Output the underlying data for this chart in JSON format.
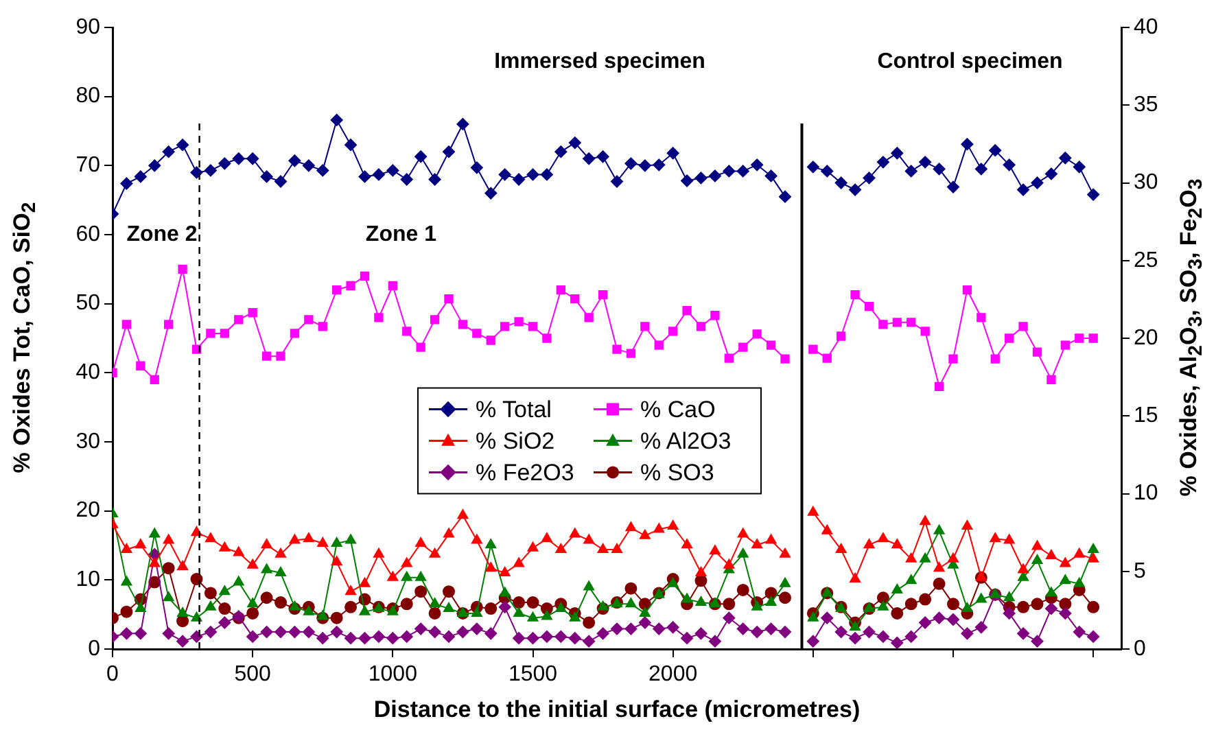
{
  "chart_data": {
    "type": "line",
    "xlabel": "Distance to the initial surface (micrometres)",
    "ylabel": "% Oxides Tot, CaO, SiO$_{2}$",
    "y2label": "% Oxides, Al$_{2}$O$_{3}$, SO$_{3}$, Fe$_{2}$O$_{3}$",
    "x": [
      0,
      50,
      100,
      150,
      200,
      250,
      300,
      350,
      400,
      450,
      500,
      550,
      600,
      650,
      700,
      750,
      800,
      850,
      900,
      950,
      1000,
      1050,
      1100,
      1150,
      1200,
      1250,
      1300,
      1350,
      1400,
      1450,
      1500,
      1550,
      1600,
      1650,
      1700,
      1750,
      1800,
      1850,
      1900,
      1950,
      2000,
      2050,
      2100,
      2150,
      2200,
      2250,
      2300,
      2350,
      2400,
      2450,
      2500,
      2550,
      2600,
      2650,
      2700,
      2750,
      2800,
      2850,
      2900,
      2950,
      3000,
      3050,
      3100,
      3150,
      3200,
      3250,
      3300,
      3350,
      3400,
      3450,
      3500
    ],
    "series": [
      {
        "name": "% Total",
        "color": "#000080",
        "marker": "diamond",
        "values": [
          63,
          67.4,
          68.4,
          70,
          72,
          73,
          69,
          69.3,
          70.3,
          71,
          71,
          68.4,
          67.7,
          70.7,
          70,
          69.3,
          76.6,
          73,
          68.4,
          68.7,
          69.3,
          68,
          71.3,
          68,
          72,
          76,
          69.7,
          66,
          68.7,
          68,
          68.7,
          68.7,
          72,
          73.3,
          71,
          71.3,
          67.7,
          70.3,
          70,
          70.1,
          71.8,
          67.8,
          68.2,
          68.5,
          69.2,
          69.2,
          70.1,
          68.5,
          65.5,
          null,
          69.8,
          69.2,
          67.5,
          66.5,
          68.2,
          70.5,
          71.8,
          69.2,
          70.5,
          69.5,
          66.9,
          73.1,
          69.5,
          72.2,
          70.1,
          66.5,
          67.5,
          68.8,
          71.1,
          69.8,
          65.8
        ]
      },
      {
        "name": "% CaO",
        "color": "#ff00ff",
        "marker": "square",
        "values": [
          40,
          47,
          41,
          39,
          47,
          55,
          43.4,
          45.7,
          45.7,
          47.7,
          48.7,
          42.4,
          42.4,
          45.7,
          47.7,
          46.7,
          52,
          52.6,
          54,
          48,
          52.6,
          46,
          43.7,
          47.7,
          50.7,
          47,
          45.7,
          44.7,
          46.7,
          47.4,
          46.7,
          45,
          52,
          50.7,
          48,
          51.3,
          43.4,
          42.8,
          46.7,
          44,
          46,
          49,
          46.7,
          48.3,
          42.1,
          43.7,
          45.6,
          44,
          42,
          null,
          43.4,
          42.1,
          45.3,
          51.3,
          49.6,
          47,
          47.3,
          47.3,
          46,
          38,
          42,
          52,
          48,
          42,
          45,
          46.7,
          43,
          39,
          44,
          45,
          45
        ]
      },
      {
        "name": "% SiO2",
        "color": "#ff0000",
        "marker": "triangle",
        "axis": "y2",
        "values": [
          8,
          6.4,
          6.7,
          5.5,
          7,
          5.3,
          7.5,
          7.1,
          6.5,
          6.2,
          5.4,
          6.7,
          6.1,
          7,
          7.1,
          6.8,
          5.6,
          3.7,
          4.2,
          6.1,
          4.6,
          5.5,
          6.8,
          6.1,
          7.4,
          8.6,
          7,
          5.2,
          4.9,
          5.5,
          6.5,
          7.1,
          6.4,
          7.4,
          7,
          6.4,
          6.4,
          7.8,
          7.3,
          7.7,
          7.9,
          6.7,
          4.9,
          6.3,
          5.4,
          7.4,
          6.7,
          7,
          6.1,
          null,
          8.8,
          7.6,
          6.4,
          4.5,
          6.7,
          7.1,
          6.7,
          5.8,
          8.2,
          5.2,
          5.8,
          7.9,
          4.6,
          7.1,
          7,
          5.1,
          6.6,
          6,
          5.5,
          6.1,
          5.8
        ]
      },
      {
        "name": "% Al2O3",
        "color": "#008000",
        "marker": "triangle",
        "axis": "y2",
        "values": [
          8.7,
          4.3,
          2.6,
          7.4,
          3.3,
          2.3,
          2,
          2.7,
          3.7,
          4.3,
          2.9,
          5.1,
          4.9,
          2.7,
          2.4,
          2.1,
          6.8,
          7,
          2.4,
          2.6,
          2.4,
          4.6,
          4.6,
          2.9,
          2.6,
          2.3,
          2.3,
          6.7,
          3.6,
          2.3,
          2,
          2.1,
          2.6,
          2,
          4,
          2.7,
          2.9,
          2.9,
          2.3,
          3.5,
          4.2,
          3.2,
          3,
          2.9,
          5.1,
          6.1,
          2.7,
          3,
          4.2,
          null,
          2,
          3.6,
          2.6,
          1.4,
          2.6,
          2.7,
          3.8,
          4.4,
          5.8,
          7.6,
          5.4,
          2.6,
          3.2,
          3.5,
          3.3,
          4.6,
          5.7,
          3.6,
          4.4,
          4.2,
          6.4
        ]
      },
      {
        "name": "% Fe2O3",
        "color": "#800080",
        "marker": "diamond",
        "axis": "y2",
        "values": [
          0.8,
          1,
          1,
          6.1,
          1,
          0.5,
          0.8,
          1.1,
          1.7,
          2.1,
          0.8,
          1.1,
          1.1,
          1.1,
          1.1,
          0.7,
          1.1,
          0.7,
          0.7,
          0.8,
          0.7,
          0.8,
          1.3,
          1.1,
          0.8,
          1.1,
          1.3,
          1,
          2.7,
          0.7,
          0.7,
          0.8,
          0.8,
          0.7,
          0.5,
          1,
          1.3,
          1.3,
          1.7,
          1.3,
          1.4,
          0.7,
          1,
          0.5,
          2,
          1.3,
          1.1,
          1.3,
          1.1,
          null,
          0.5,
          2,
          1.1,
          0.7,
          1.1,
          0.8,
          0.4,
          0.8,
          1.7,
          2,
          1.9,
          1,
          1.4,
          3.5,
          2.3,
          1,
          0.5,
          2.6,
          2.3,
          1.1,
          0.8
        ]
      },
      {
        "name": "% SO3",
        "color": "#800000",
        "marker": "circle",
        "axis": "y2",
        "values": [
          2,
          2.4,
          3.2,
          4.3,
          5.2,
          1.8,
          4.5,
          3.6,
          2.6,
          2,
          2.3,
          3.3,
          3,
          2.6,
          2.7,
          2,
          2,
          2.7,
          3.2,
          2.7,
          2.6,
          2.9,
          3.7,
          2.3,
          3.7,
          2.3,
          2.7,
          2.6,
          3.3,
          3,
          3,
          2.6,
          2.9,
          2.3,
          1.7,
          2.6,
          3,
          3.9,
          2.9,
          3.6,
          4.5,
          2.9,
          4.4,
          2.9,
          2.9,
          3.8,
          3,
          3.6,
          3.3,
          null,
          2.3,
          3.6,
          2.7,
          1.7,
          2.6,
          3.3,
          2.3,
          2.9,
          3.2,
          4.2,
          2.9,
          2.3,
          4.6,
          3.5,
          2.7,
          2.7,
          2.9,
          3.3,
          2.9,
          3.8,
          2.7
        ]
      }
    ],
    "xlim": [
      0,
      3600
    ],
    "xticks": [
      0,
      500,
      1000,
      1500,
      2000,
      {
        "value": 2500,
        "label": null
      },
      {
        "value": 3000,
        "label": null
      },
      {
        "value": 3500,
        "label": null
      }
    ],
    "ylim": [
      0,
      90
    ],
    "yticks": [
      0,
      10,
      20,
      30,
      40,
      50,
      60,
      70,
      80,
      90
    ],
    "y2lim": [
      0,
      40
    ],
    "y2ticks": [
      0,
      5,
      10,
      15,
      20,
      25,
      30,
      35,
      40
    ],
    "ref_lines": [
      {
        "axis": "x",
        "value": 310,
        "line_style": "dashed",
        "color": "#000000"
      },
      {
        "axis": "x",
        "value": 2460,
        "line_style": "solid",
        "color": "#000000"
      }
    ],
    "annotations": [
      "Immersed specimen",
      "Control specimen",
      "Zone 2",
      "Zone 1"
    ],
    "legend": "center",
    "line_style": "solid"
  }
}
